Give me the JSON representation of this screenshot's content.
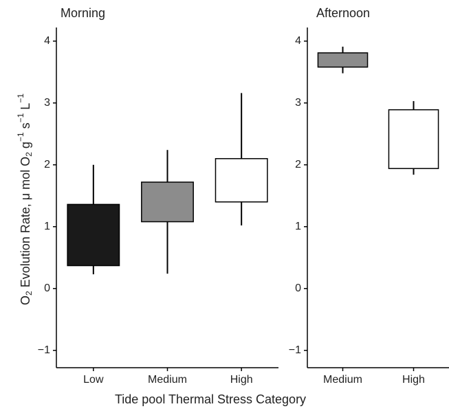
{
  "chart_data": [
    {
      "type": "box",
      "title": "Morning",
      "ylabel_parts": [
        "O",
        "2",
        " Evolution Rate,  μ mol O",
        "2",
        " g",
        "−1",
        " s",
        "−1",
        " L",
        "−1"
      ],
      "xlabel": "Tide pool Thermal Stress Category",
      "categories": [
        "Low",
        "Medium",
        "High"
      ],
      "colors": [
        "#1a1a1a",
        "#8c8c8c",
        "#ffffff"
      ],
      "whisker_low": [
        0.23,
        0.24,
        1.02
      ],
      "q1": [
        0.37,
        1.08,
        1.4
      ],
      "q3": [
        1.36,
        1.72,
        2.1
      ],
      "whisker_high": [
        2.0,
        2.24,
        3.16
      ],
      "ylim": [
        -1.28,
        4.22
      ],
      "yticks": [
        {
          "value": -1,
          "label": "−1"
        },
        0,
        1,
        2,
        3,
        4
      ]
    },
    {
      "type": "box",
      "title": "Afternoon",
      "categories": [
        "Medium",
        "High"
      ],
      "colors": [
        "#8c8c8c",
        "#ffffff"
      ],
      "whisker_low": [
        3.48,
        1.84
      ],
      "q1": [
        3.58,
        1.94
      ],
      "q3": [
        3.81,
        2.89
      ],
      "whisker_high": [
        3.91,
        3.03
      ],
      "ylim": [
        -1.28,
        4.22
      ],
      "yticks": [
        {
          "value": -1,
          "label": "−1"
        },
        0,
        1,
        2,
        3,
        4
      ]
    }
  ]
}
